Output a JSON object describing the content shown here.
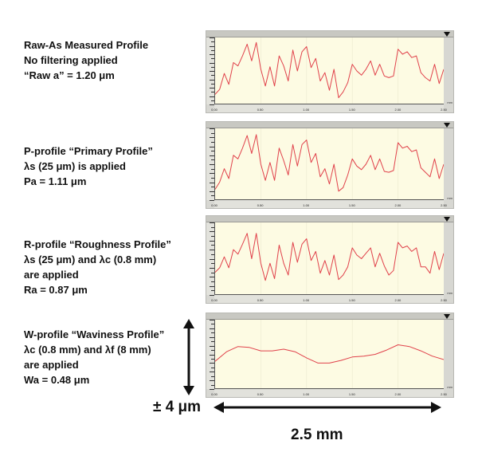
{
  "labels": [
    {
      "lines": [
        "Raw-As Measured Profile",
        "No filtering applied",
        "“Raw a” = 1.20  μm"
      ]
    },
    {
      "lines": [
        "P-profile “Primary Profile”",
        "λs (25 μm) is applied",
        "Pa = 1.11 μm"
      ]
    },
    {
      "lines": [
        "R-profile “Roughness Profile”",
        "λs (25 μm) and λc (0.8 mm)",
        "are applied",
        "Ra = 0.87 μm"
      ]
    },
    {
      "lines": [
        "W-profile “Waviness Profile”",
        "λc (0.8 mm) and λf (8 mm)",
        "are applied",
        "Wa = 0.48 μm"
      ]
    }
  ],
  "scale": {
    "vertical_label": "± 4 μm",
    "horizontal_label": "2.5 mm"
  },
  "axis": {
    "y_unit": "μm",
    "x_unit": "mm",
    "x_ticks": [
      "0.00",
      "0.50",
      "1.00",
      "1.50",
      "2.00",
      "2.50"
    ]
  },
  "colors": {
    "line": "#e0404a",
    "plot_bg": "#fdfbe3",
    "frame": "#d7d7d2"
  },
  "chart_data": [
    {
      "type": "line",
      "title": "Raw-As Measured Profile",
      "annotation": "“Raw a” = 1.20 μm",
      "xlabel": "mm",
      "ylabel": "μm",
      "xlim": [
        0,
        2.5
      ],
      "ylim": [
        -4,
        4
      ],
      "x": [
        0,
        0.05,
        0.1,
        0.15,
        0.2,
        0.25,
        0.3,
        0.35,
        0.4,
        0.45,
        0.5,
        0.55,
        0.6,
        0.65,
        0.7,
        0.75,
        0.8,
        0.85,
        0.9,
        0.95,
        1.0,
        1.05,
        1.1,
        1.15,
        1.2,
        1.25,
        1.3,
        1.35,
        1.4,
        1.45,
        1.5,
        1.55,
        1.6,
        1.65,
        1.7,
        1.75,
        1.8,
        1.85,
        1.9,
        1.95,
        2.0,
        2.05,
        2.1,
        2.15,
        2.2,
        2.25,
        2.3,
        2.35,
        2.4,
        2.45,
        2.5
      ],
      "y": [
        -2.8,
        -2.2,
        -0.3,
        -1.6,
        1.0,
        0.6,
        1.8,
        3.2,
        1.2,
        3.4,
        0.2,
        -1.8,
        0.5,
        -1.8,
        1.8,
        0.6,
        -1.2,
        2.5,
        0.0,
        2.3,
        2.9,
        0.4,
        1.5,
        -1.2,
        -0.2,
        -2.3,
        0.2,
        -3.2,
        -2.5,
        -1.4,
        0.8,
        0.0,
        -0.5,
        0.2,
        1.2,
        -0.5,
        0.8,
        -0.6,
        -0.8,
        -0.6,
        2.6,
        2.0,
        2.3,
        1.6,
        1.8,
        -0.2,
        -0.8,
        -1.2,
        0.8,
        -1.5,
        0.2
      ]
    },
    {
      "type": "line",
      "title": "P-profile “Primary Profile”",
      "annotation": "Pa = 1.11 μm",
      "xlabel": "mm",
      "ylabel": "μm",
      "xlim": [
        0,
        2.5
      ],
      "ylim": [
        -4,
        4
      ],
      "x": [
        0,
        0.05,
        0.1,
        0.15,
        0.2,
        0.25,
        0.3,
        0.35,
        0.4,
        0.45,
        0.5,
        0.55,
        0.6,
        0.65,
        0.7,
        0.75,
        0.8,
        0.85,
        0.9,
        0.95,
        1.0,
        1.05,
        1.1,
        1.15,
        1.2,
        1.25,
        1.3,
        1.35,
        1.4,
        1.45,
        1.5,
        1.55,
        1.6,
        1.65,
        1.7,
        1.75,
        1.8,
        1.85,
        1.9,
        1.95,
        2.0,
        2.05,
        2.1,
        2.15,
        2.2,
        2.25,
        2.3,
        2.35,
        2.4,
        2.45,
        2.5
      ],
      "y": [
        -2.8,
        -2.0,
        -0.5,
        -1.6,
        1.0,
        0.6,
        1.8,
        3.2,
        1.2,
        3.3,
        0.0,
        -1.8,
        0.2,
        -1.8,
        1.8,
        0.4,
        -1.2,
        2.2,
        -0.2,
        2.2,
        2.7,
        0.2,
        1.2,
        -1.4,
        -0.5,
        -2.2,
        0.0,
        -3.0,
        -2.6,
        -1.2,
        0.6,
        -0.2,
        -0.6,
        0.0,
        1.0,
        -0.6,
        0.6,
        -0.8,
        -0.9,
        -0.7,
        2.4,
        1.8,
        2.0,
        1.4,
        1.6,
        -0.4,
        -0.9,
        -1.4,
        0.6,
        -1.6,
        0.0
      ]
    },
    {
      "type": "line",
      "title": "R-profile “Roughness Profile”",
      "annotation": "Ra = 0.87 μm",
      "xlabel": "mm",
      "ylabel": "μm",
      "xlim": [
        0,
        2.5
      ],
      "ylim": [
        -4,
        4
      ],
      "x": [
        0,
        0.05,
        0.1,
        0.15,
        0.2,
        0.25,
        0.3,
        0.35,
        0.4,
        0.45,
        0.5,
        0.55,
        0.6,
        0.65,
        0.7,
        0.75,
        0.8,
        0.85,
        0.9,
        0.95,
        1.0,
        1.05,
        1.1,
        1.15,
        1.2,
        1.25,
        1.3,
        1.35,
        1.4,
        1.45,
        1.5,
        1.55,
        1.6,
        1.65,
        1.7,
        1.75,
        1.8,
        1.85,
        1.9,
        1.95,
        2.0,
        2.05,
        2.1,
        2.15,
        2.2,
        2.25,
        2.3,
        2.35,
        2.4,
        2.45,
        2.5
      ],
      "y": [
        -1.5,
        -1.0,
        0.2,
        -1.0,
        1.0,
        0.5,
        1.6,
        2.8,
        0.0,
        2.8,
        -0.5,
        -2.4,
        -0.5,
        -2.2,
        1.5,
        -0.5,
        -1.8,
        1.8,
        -0.4,
        1.6,
        2.2,
        -0.2,
        0.8,
        -1.6,
        -0.2,
        -1.8,
        0.4,
        -2.3,
        -1.8,
        -0.9,
        1.2,
        0.4,
        0.0,
        0.6,
        1.2,
        -0.9,
        0.6,
        -0.8,
        -1.8,
        -1.3,
        1.8,
        1.2,
        1.4,
        0.8,
        1.2,
        -0.9,
        -0.9,
        -1.6,
        0.8,
        -1.2,
        0.6
      ]
    },
    {
      "type": "line",
      "title": "W-profile “Waviness Profile”",
      "annotation": "Wa = 0.48 μm",
      "xlabel": "mm",
      "ylabel": "μm",
      "xlim": [
        0,
        2.5
      ],
      "ylim": [
        -4,
        4
      ],
      "x": [
        0,
        0.125,
        0.25,
        0.375,
        0.5,
        0.625,
        0.75,
        0.875,
        1.0,
        1.125,
        1.25,
        1.375,
        1.5,
        1.625,
        1.75,
        1.875,
        2.0,
        2.125,
        2.25,
        2.375,
        2.5
      ],
      "y": [
        -0.8,
        0.3,
        0.9,
        0.8,
        0.4,
        0.4,
        0.6,
        0.3,
        -0.4,
        -1.0,
        -1.0,
        -0.7,
        -0.3,
        -0.2,
        0.0,
        0.5,
        1.1,
        0.9,
        0.4,
        -0.2,
        -0.6
      ]
    }
  ]
}
